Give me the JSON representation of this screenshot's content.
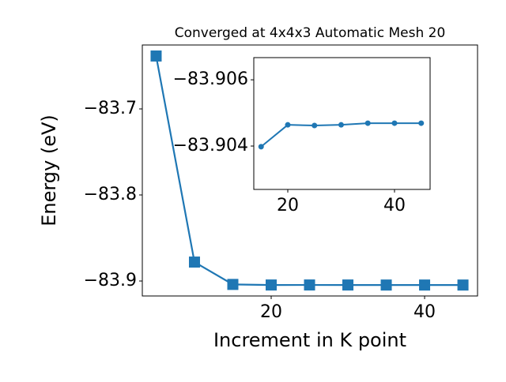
{
  "chart_data": [
    {
      "type": "line",
      "title": "Converged at 4x4x3 Automatic Mesh 20",
      "x_label": "Increment in K point",
      "y_label": "Energy (eV)",
      "x": [
        5,
        10,
        15,
        20,
        25,
        30,
        35,
        40,
        45
      ],
      "series": [
        {
          "color": "#1f77b4",
          "marker": "square",
          "values": [
            -83.6385,
            -83.878,
            -83.90398,
            -83.90464,
            -83.90462,
            -83.90464,
            -83.90469,
            -83.90469,
            -83.90469
          ]
        }
      ],
      "xlim": [
        3.2,
        46.9
      ],
      "ylim": [
        -83.9174,
        -83.6257
      ],
      "xticks": [
        20,
        40
      ],
      "yticks": [
        {
          "value": -83.9,
          "label": "−83.9"
        },
        {
          "value": -83.8,
          "label": "−83.8"
        },
        {
          "value": -83.7,
          "label": "−83.7"
        }
      ]
    },
    {
      "type": "line",
      "x": [
        15,
        20,
        25,
        30,
        35,
        40,
        45
      ],
      "series": [
        {
          "color": "#1f77b4",
          "marker": "circle",
          "values": [
            -83.90398,
            -83.90464,
            -83.90462,
            -83.90464,
            -83.90469,
            -83.90469,
            -83.90469
          ]
        }
      ],
      "xlim": [
        13.63,
        46.67
      ],
      "ylim": [
        -83.90269,
        -83.90667
      ],
      "xticks": [
        20,
        40
      ],
      "yticks": [
        {
          "value": -83.904,
          "label": "−83.904"
        },
        {
          "value": -83.906,
          "label": "−83.906"
        }
      ]
    }
  ]
}
